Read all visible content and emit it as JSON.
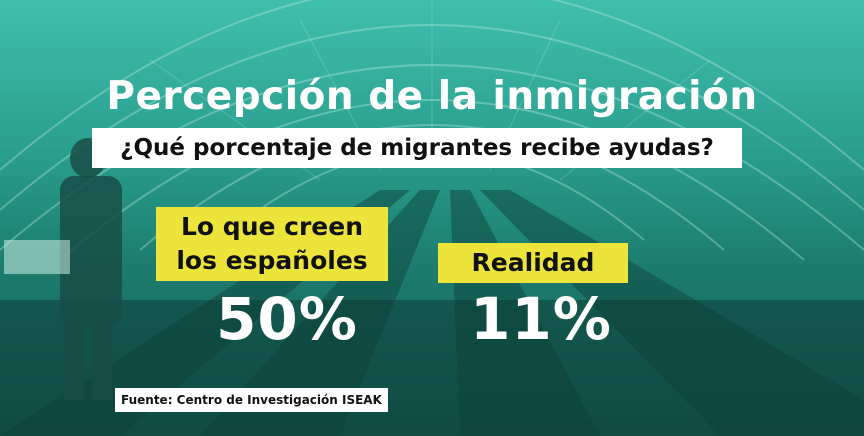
{
  "title": "Percepción de la inmigración",
  "question": "¿Qué porcentaje de migrantes recibe ayudas?",
  "perception": {
    "label_line1": "Lo que creen",
    "label_line2": "los españoles",
    "value": "50%"
  },
  "reality": {
    "label": "Realidad",
    "value": "11%"
  },
  "source": "Fuente: Centro de Investigación ISEAK",
  "colors": {
    "teal_overlay": "#2a9e8e",
    "highlight_yellow": "#ece33b",
    "text_white": "#ffffff",
    "text_dark": "#111111"
  }
}
